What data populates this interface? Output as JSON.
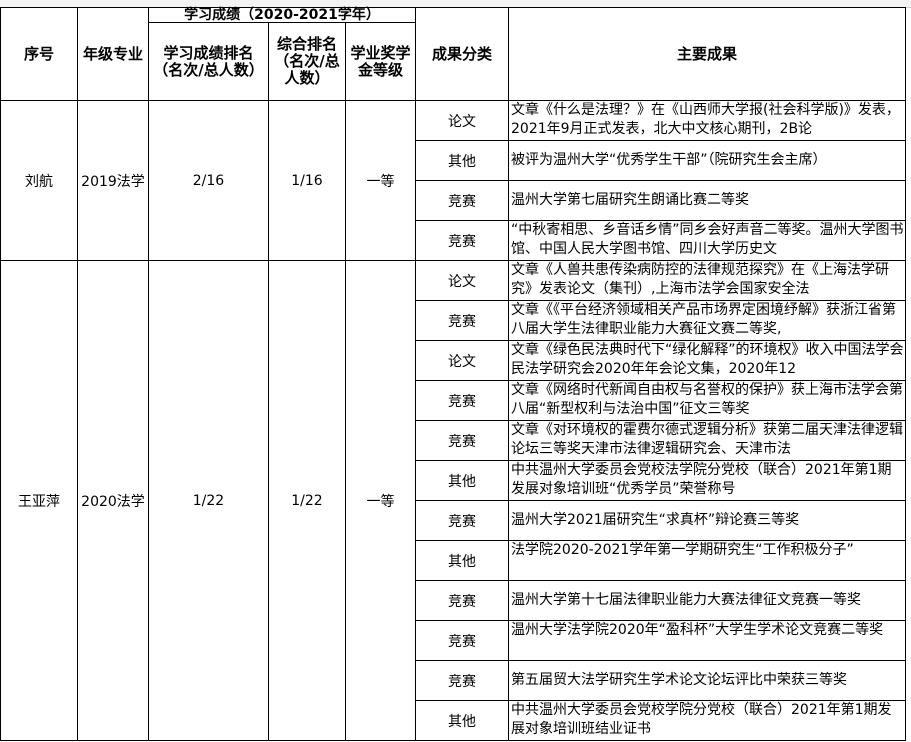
{
  "header": {
    "index": "序号",
    "grade_major": "年级专业",
    "academic_group": "学习成绩（2020-2021学年）",
    "study_rank": "学习成绩排名（名次/总人数）",
    "overall_rank": "综合排名（名次/总人数）",
    "scholarship": "学业奖学金等级",
    "category": "成果分类",
    "achievements": "主要成果"
  },
  "students": [
    {
      "name": "刘航",
      "grade_major": "2019法学",
      "study_rank": "2/16",
      "overall_rank": "1/16",
      "scholarship": "一等",
      "items": [
        {
          "category": "论文",
          "text": "文章《什么是法理？》在《山西师大学报(社会科学版)》发表，2021年9月正式发表，北大中文核心期刊，2B论"
        },
        {
          "category": "其他",
          "text": "被评为温州大学“优秀学生干部”（院研究生会主席）"
        },
        {
          "category": "竞赛",
          "text": "温州大学第七届研究生朗诵比赛二等奖"
        },
        {
          "category": "竞赛",
          "text": "“中秋寄相思、乡音话乡情”同乡会好声音二等奖。温州大学图书馆、中国人民大学图书馆、四川大学历史文"
        }
      ]
    },
    {
      "name": "王亚萍",
      "grade_major": "2020法学",
      "study_rank": "1/22",
      "overall_rank": "1/22",
      "scholarship": "一等",
      "items": [
        {
          "category": "论文",
          "text": "文章《人兽共患传染病防控的法律规范探究》在《上海法学研究》发表论文（集刊）,上海市法学会国家安全法"
        },
        {
          "category": "竞赛",
          "text": "文章《《平台经济领域相关产品市场界定困境纾解》获浙江省第八届大学生法律职业能力大赛征文赛二等奖,"
        },
        {
          "category": "论文",
          "text": "文章《绿色民法典时代下“绿化解释”的环境权》收入中国法学会民法学研究会2020年年会论文集，2020年12"
        },
        {
          "category": "竞赛",
          "text": "文章《网络时代新闻自由权与名誉权的保护》获上海市法学会第八届“新型权利与法治中国”征文三等奖"
        },
        {
          "category": "竞赛",
          "text": "文章《对环境权的霍费尔德式逻辑分析》获第二届天津法律逻辑论坛三等奖天津市法律逻辑研究会、天津市法"
        },
        {
          "category": "其他",
          "text": "中共温州大学委员会党校法学院分党校（联合）2021年第1期发展对象培训班“优秀学员”荣誉称号"
        },
        {
          "category": "竞赛",
          "text": "温州大学2021届研究生“求真杯”辩论赛三等奖"
        },
        {
          "category": "其他",
          "text": "法学院2020-2021学年第一学期研究生“工作积极分子”"
        },
        {
          "category": "竞赛",
          "text": "温州大学第十七届法律职业能力大赛法律征文竞赛一等奖"
        },
        {
          "category": "竞赛",
          "text": "温州大学法学院2020年“盈科杯”大学生学术论文竞赛二等奖"
        },
        {
          "category": "竞赛",
          "text": "第五届贸大法学研究生学术论文论坛评比中荣获三等奖"
        },
        {
          "category": "其他",
          "text": "中共温州大学委员会党校学院分党校（联合）2021年第1期发展对象培训班结业证书"
        }
      ]
    }
  ]
}
